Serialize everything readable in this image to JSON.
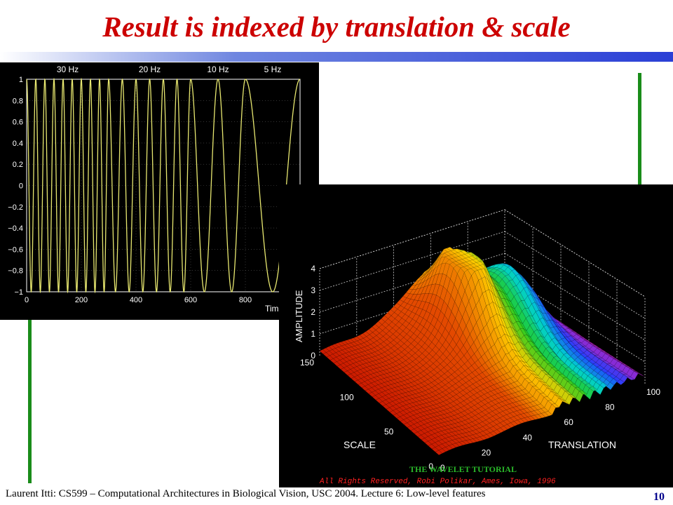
{
  "slide": {
    "title": "Result is indexed by translation & scale",
    "footer": "Laurent Itti: CS599 – Computational Architectures in Biological Vision, USC 2004. Lecture 6: Low-level features",
    "page_number": "10"
  },
  "colors": {
    "title": "#cc0000",
    "rule_dark": "#2a3fd6",
    "green_lines": "#1a8c1a",
    "signal": "#e8e870",
    "panel_bg": "#000000"
  },
  "chart_data": [
    {
      "type": "line",
      "freq_labels": [
        "30 Hz",
        "20 Hz",
        "10 Hz",
        "5 Hz"
      ],
      "segments": [
        {
          "freq_hz": 30,
          "t_range": [
            0,
            300
          ]
        },
        {
          "freq_hz": 20,
          "t_range": [
            300,
            600
          ]
        },
        {
          "freq_hz": 10,
          "t_range": [
            600,
            800
          ]
        },
        {
          "freq_hz": 5,
          "t_range": [
            800,
            1000
          ]
        }
      ],
      "xlabel": "Tim",
      "xlim": [
        0,
        1000
      ],
      "ylim": [
        -1,
        1
      ],
      "x_ticks": [
        "0",
        "200",
        "400",
        "600",
        "800"
      ],
      "y_ticks": [
        "1",
        "0.8",
        "0.6",
        "0.4",
        "0.2",
        "0",
        "−0.2",
        "−0.4",
        "−0.6",
        "−0.8",
        "−1"
      ],
      "grid": true
    },
    {
      "type": "surface",
      "zlabel": "AMPLITUDE",
      "scale_label": "SCALE",
      "translation_label": "TRANSLATION",
      "z_ticks": [
        "0",
        "1",
        "2",
        "3",
        "4"
      ],
      "scale_ticks": [
        "0",
        "50",
        "100",
        "150"
      ],
      "translation_ticks": [
        "0",
        "20",
        "40",
        "60",
        "80",
        "100"
      ],
      "zlim": [
        0,
        4
      ],
      "scale_range": [
        0,
        150
      ],
      "translation_range": [
        0,
        100
      ],
      "tutorial_label": "THE WAVELET TUTORIAL",
      "copyright": "All Rights Reserved, Robi Polikar, Ames, Iowa, 1996"
    }
  ]
}
